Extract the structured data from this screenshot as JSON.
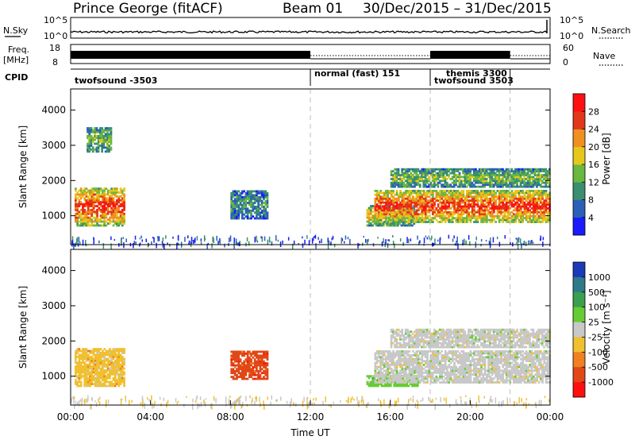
{
  "header": {
    "station": "Prince George (fitACF)",
    "beam": "Beam 01",
    "dates": "30/Dec/2015 – 31/Dec/2015"
  },
  "strip_labels": {
    "nsky": "N.Sky",
    "nsky_ticks": [
      "10^5",
      "10^0"
    ],
    "nsearch": "N.Search",
    "nsearch_ticks": [
      "10^5",
      "10^0"
    ],
    "freq": "Freq.",
    "freq_unit": "[MHz]",
    "freq_ticks": [
      "18",
      "8"
    ],
    "nave": "Nave",
    "nave_ticks": [
      "60",
      "0"
    ],
    "cpid": "CPID"
  },
  "cpid_segments": [
    {
      "start": 0.0,
      "end": 12.0,
      "label": "twofsound -3503"
    },
    {
      "start": 12.0,
      "end": 18.0,
      "label": "normal (fast) 151"
    },
    {
      "start": 18.0,
      "end": 22.0,
      "label": "themis 3300"
    },
    {
      "start": 18.0,
      "end": 24.0,
      "label": "twofsound 3503"
    }
  ],
  "chart_data": [
    {
      "type": "heatmap",
      "name": "power",
      "ylabel": "Slant Range [km]",
      "xlabel": "",
      "xlim": [
        0,
        24
      ],
      "ylim": [
        180,
        4600
      ],
      "yticks": [
        1000,
        2000,
        3000,
        4000
      ],
      "colorbar": {
        "label": "Power [dB]",
        "ticks": [
          "4",
          "8",
          "12",
          "16",
          "20",
          "24",
          "28"
        ],
        "colors": [
          "#1a1aff",
          "#2b5fb8",
          "#3a8f70",
          "#6ab840",
          "#e6c81a",
          "#f09020",
          "#e03818",
          "#ff1010"
        ]
      },
      "echo_regions": [
        {
          "t0": 0.2,
          "t1": 2.7,
          "r0": 700,
          "r1": 1800,
          "level": 6
        },
        {
          "t0": 0.8,
          "t1": 2.0,
          "r0": 2800,
          "r1": 3500,
          "level": 3
        },
        {
          "t0": 8.0,
          "t1": 9.8,
          "r0": 900,
          "r1": 1700,
          "level": 2
        },
        {
          "t0": 14.8,
          "t1": 17.2,
          "r0": 700,
          "r1": 1300,
          "level": 4
        },
        {
          "t0": 15.2,
          "t1": 24.0,
          "r0": 800,
          "r1": 1700,
          "level": 6
        },
        {
          "t0": 16.0,
          "t1": 24.0,
          "r0": 1800,
          "r1": 2300,
          "level": 3
        },
        {
          "t0": 0.0,
          "t1": 24.0,
          "r0": 200,
          "r1": 450,
          "level": 1
        }
      ]
    },
    {
      "type": "heatmap",
      "name": "velocity",
      "ylabel": "Slant Range [km]",
      "xlabel": "Time UT",
      "xlim": [
        0,
        24
      ],
      "ylim": [
        180,
        4600
      ],
      "xticks": [
        "00:00",
        "04:00",
        "08:00",
        "12:00",
        "16:00",
        "20:00",
        "00:00"
      ],
      "yticks": [
        1000,
        2000,
        3000,
        4000
      ],
      "colorbar": {
        "label": "Velocity [m s⁻¹]",
        "ticks": [
          "1000",
          "500",
          "100",
          "25",
          "-25",
          "-100",
          "-500",
          "-1000"
        ],
        "colors": [
          "#1a3ab8",
          "#2e7a8a",
          "#3aa050",
          "#66cc33",
          "#c8c8c8",
          "#f0c030",
          "#f08020",
          "#e04818",
          "#ff1010"
        ]
      },
      "echo_regions": [
        {
          "t0": 0.2,
          "t1": 2.7,
          "r0": 700,
          "r1": 1800,
          "color": 5
        },
        {
          "t0": 8.0,
          "t1": 9.8,
          "r0": 900,
          "r1": 1700,
          "color": 7
        },
        {
          "t0": 14.8,
          "t1": 17.4,
          "r0": 700,
          "r1": 1000,
          "color": 3
        },
        {
          "t0": 15.2,
          "t1": 24.0,
          "r0": 800,
          "r1": 1700,
          "color": 4
        },
        {
          "t0": 16.0,
          "t1": 24.0,
          "r0": 1800,
          "r1": 2300,
          "color": 4
        },
        {
          "t0": 0.0,
          "t1": 24.0,
          "r0": 200,
          "r1": 450,
          "color": 5
        }
      ]
    }
  ]
}
